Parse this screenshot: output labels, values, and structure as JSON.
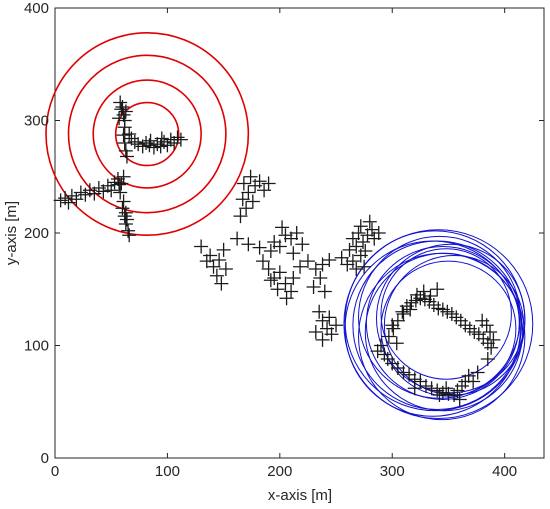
{
  "chart_data": {
    "type": "scatter",
    "title": "",
    "xlabel": "x-axis [m]",
    "ylabel": "y-axis [m]",
    "xlim": [
      0,
      435
    ],
    "ylim": [
      0,
      400
    ],
    "xticks": [
      "0",
      "100",
      "200",
      "300",
      "400"
    ],
    "yticks": [
      "0",
      "100",
      "200",
      "300",
      "400"
    ],
    "grid": false,
    "legend": "none",
    "colors": {
      "points": "#1a1a1a",
      "red_circles": "#e00000",
      "blue_circles": "#1010d0",
      "axes": "#262626"
    },
    "red_circles": {
      "center": [
        82,
        288
      ],
      "radii": [
        28,
        48,
        70,
        90
      ]
    },
    "blue_circles": [
      {
        "center": [
          345,
          120
        ],
        "radius": 68
      },
      {
        "center": [
          340,
          118
        ],
        "radius": 75
      },
      {
        "center": [
          350,
          115
        ],
        "radius": 60
      },
      {
        "center": [
          338,
          122
        ],
        "radius": 80
      },
      {
        "center": [
          346,
          112
        ],
        "radius": 70
      },
      {
        "center": [
          355,
          118
        ],
        "radius": 62
      },
      {
        "center": [
          342,
          125
        ],
        "radius": 72
      },
      {
        "center": [
          336,
          115
        ],
        "radius": 78
      },
      {
        "center": [
          352,
          124
        ],
        "radius": 66
      },
      {
        "center": [
          344,
          108
        ],
        "radius": 74
      },
      {
        "center": [
          348,
          128
        ],
        "radius": 58
      },
      {
        "center": [
          341,
          119
        ],
        "radius": 84
      }
    ],
    "series": [
      {
        "marker": "+",
        "points": [
          [
            5,
            229
          ],
          [
            9,
            231
          ],
          [
            12,
            227
          ],
          [
            15,
            233
          ],
          [
            19,
            230
          ],
          [
            23,
            236
          ],
          [
            27,
            234
          ],
          [
            31,
            238
          ],
          [
            35,
            235
          ],
          [
            39,
            240
          ],
          [
            43,
            237
          ],
          [
            47,
            242
          ],
          [
            50,
            238
          ],
          [
            53,
            245
          ],
          [
            56,
            248
          ],
          [
            59,
            244
          ],
          [
            61,
            250
          ],
          [
            58,
            236
          ],
          [
            57,
            243
          ],
          [
            60,
            222
          ],
          [
            62,
            215
          ],
          [
            63,
            208
          ],
          [
            65,
            202
          ],
          [
            66,
            198
          ],
          [
            61,
            228
          ],
          [
            64,
            212
          ],
          [
            63,
            218
          ],
          [
            58,
            316
          ],
          [
            59,
            310
          ],
          [
            61,
            305
          ],
          [
            62,
            300
          ],
          [
            62,
            294
          ],
          [
            61,
            287
          ],
          [
            62,
            280
          ],
          [
            63,
            273
          ],
          [
            64,
            268
          ],
          [
            60,
            312
          ],
          [
            63,
            308
          ],
          [
            57,
            302
          ],
          [
            66,
            288
          ],
          [
            68,
            284
          ],
          [
            71,
            281
          ],
          [
            74,
            279
          ],
          [
            78,
            277
          ],
          [
            81,
            280
          ],
          [
            84,
            278
          ],
          [
            88,
            276
          ],
          [
            91,
            279
          ],
          [
            94,
            277
          ],
          [
            97,
            281
          ],
          [
            100,
            278
          ],
          [
            103,
            283
          ],
          [
            106,
            280
          ],
          [
            109,
            285
          ],
          [
            112,
            283
          ],
          [
            85,
            282
          ],
          [
            95,
            284
          ],
          [
            167,
            230
          ],
          [
            170,
            222
          ],
          [
            165,
            215
          ],
          [
            172,
            236
          ],
          [
            178,
            242
          ],
          [
            168,
            244
          ],
          [
            174,
            250
          ],
          [
            182,
            246
          ],
          [
            186,
            238
          ],
          [
            190,
            244
          ],
          [
            176,
            228
          ],
          [
            130,
            188
          ],
          [
            135,
            175
          ],
          [
            138,
            180
          ],
          [
            141,
            170
          ],
          [
            144,
            162
          ],
          [
            146,
            176
          ],
          [
            150,
            185
          ],
          [
            152,
            168
          ],
          [
            148,
            155
          ],
          [
            162,
            195
          ],
          [
            172,
            190
          ],
          [
            182,
            187
          ],
          [
            192,
            184
          ],
          [
            195,
            192
          ],
          [
            200,
            188
          ],
          [
            205,
            198
          ],
          [
            210,
            195
          ],
          [
            215,
            200
          ],
          [
            220,
            190
          ],
          [
            212,
            182
          ],
          [
            202,
            205
          ],
          [
            185,
            175
          ],
          [
            190,
            168
          ],
          [
            195,
            160
          ],
          [
            200,
            165
          ],
          [
            205,
            155
          ],
          [
            212,
            160
          ],
          [
            218,
            170
          ],
          [
            210,
            148
          ],
          [
            198,
            150
          ],
          [
            192,
            158
          ],
          [
            206,
            142
          ],
          [
            225,
            175
          ],
          [
            232,
            168
          ],
          [
            238,
            172
          ],
          [
            244,
            176
          ],
          [
            236,
            160
          ],
          [
            230,
            152
          ],
          [
            240,
            148
          ],
          [
            235,
            130
          ],
          [
            238,
            122
          ],
          [
            242,
            115
          ],
          [
            246,
            110
          ],
          [
            238,
            105
          ],
          [
            244,
            125
          ],
          [
            250,
            118
          ],
          [
            232,
            112
          ],
          [
            255,
            178
          ],
          [
            260,
            172
          ],
          [
            265,
            175
          ],
          [
            268,
            168
          ],
          [
            272,
            180
          ],
          [
            275,
            170
          ],
          [
            262,
            185
          ],
          [
            265,
            195
          ],
          [
            270,
            200
          ],
          [
            274,
            192
          ],
          [
            278,
            198
          ],
          [
            282,
            203
          ],
          [
            268,
            188
          ],
          [
            276,
            184
          ],
          [
            284,
            195
          ],
          [
            288,
            200
          ],
          [
            272,
            206
          ],
          [
            280,
            210
          ],
          [
            287,
            95
          ],
          [
            290,
            100
          ],
          [
            293,
            92
          ],
          [
            296,
            88
          ],
          [
            300,
            84
          ],
          [
            305,
            80
          ],
          [
            310,
            76
          ],
          [
            315,
            74
          ],
          [
            320,
            70
          ],
          [
            325,
            68
          ],
          [
            330,
            64
          ],
          [
            335,
            62
          ],
          [
            340,
            60
          ],
          [
            345,
            58
          ],
          [
            350,
            57
          ],
          [
            355,
            56
          ],
          [
            358,
            60
          ],
          [
            362,
            64
          ],
          [
            365,
            68
          ],
          [
            368,
            73
          ],
          [
            297,
            108
          ],
          [
            301,
            115
          ],
          [
            305,
            122
          ],
          [
            309,
            130
          ],
          [
            313,
            135
          ],
          [
            317,
            138
          ],
          [
            321,
            140
          ],
          [
            325,
            142
          ],
          [
            329,
            141
          ],
          [
            333,
            139
          ],
          [
            337,
            136
          ],
          [
            341,
            133
          ],
          [
            345,
            132
          ],
          [
            349,
            130
          ],
          [
            353,
            128
          ],
          [
            357,
            125
          ],
          [
            361,
            122
          ],
          [
            365,
            118
          ],
          [
            369,
            115
          ],
          [
            373,
            112
          ],
          [
            377,
            110
          ],
          [
            381,
            106
          ],
          [
            385,
            102
          ],
          [
            388,
            98
          ],
          [
            390,
            105
          ],
          [
            387,
            112
          ],
          [
            384,
            118
          ],
          [
            380,
            122
          ],
          [
            310,
            128
          ],
          [
            316,
            132
          ],
          [
            322,
            145
          ],
          [
            328,
            148
          ],
          [
            334,
            144
          ],
          [
            340,
            150
          ],
          [
            300,
            118
          ],
          [
            304,
            102
          ],
          [
            320,
            62
          ],
          [
            342,
            56
          ],
          [
            348,
            62
          ],
          [
            360,
            52
          ],
          [
            372,
            68
          ],
          [
            376,
            76
          ],
          [
            385,
            88
          ]
        ]
      }
    ]
  }
}
